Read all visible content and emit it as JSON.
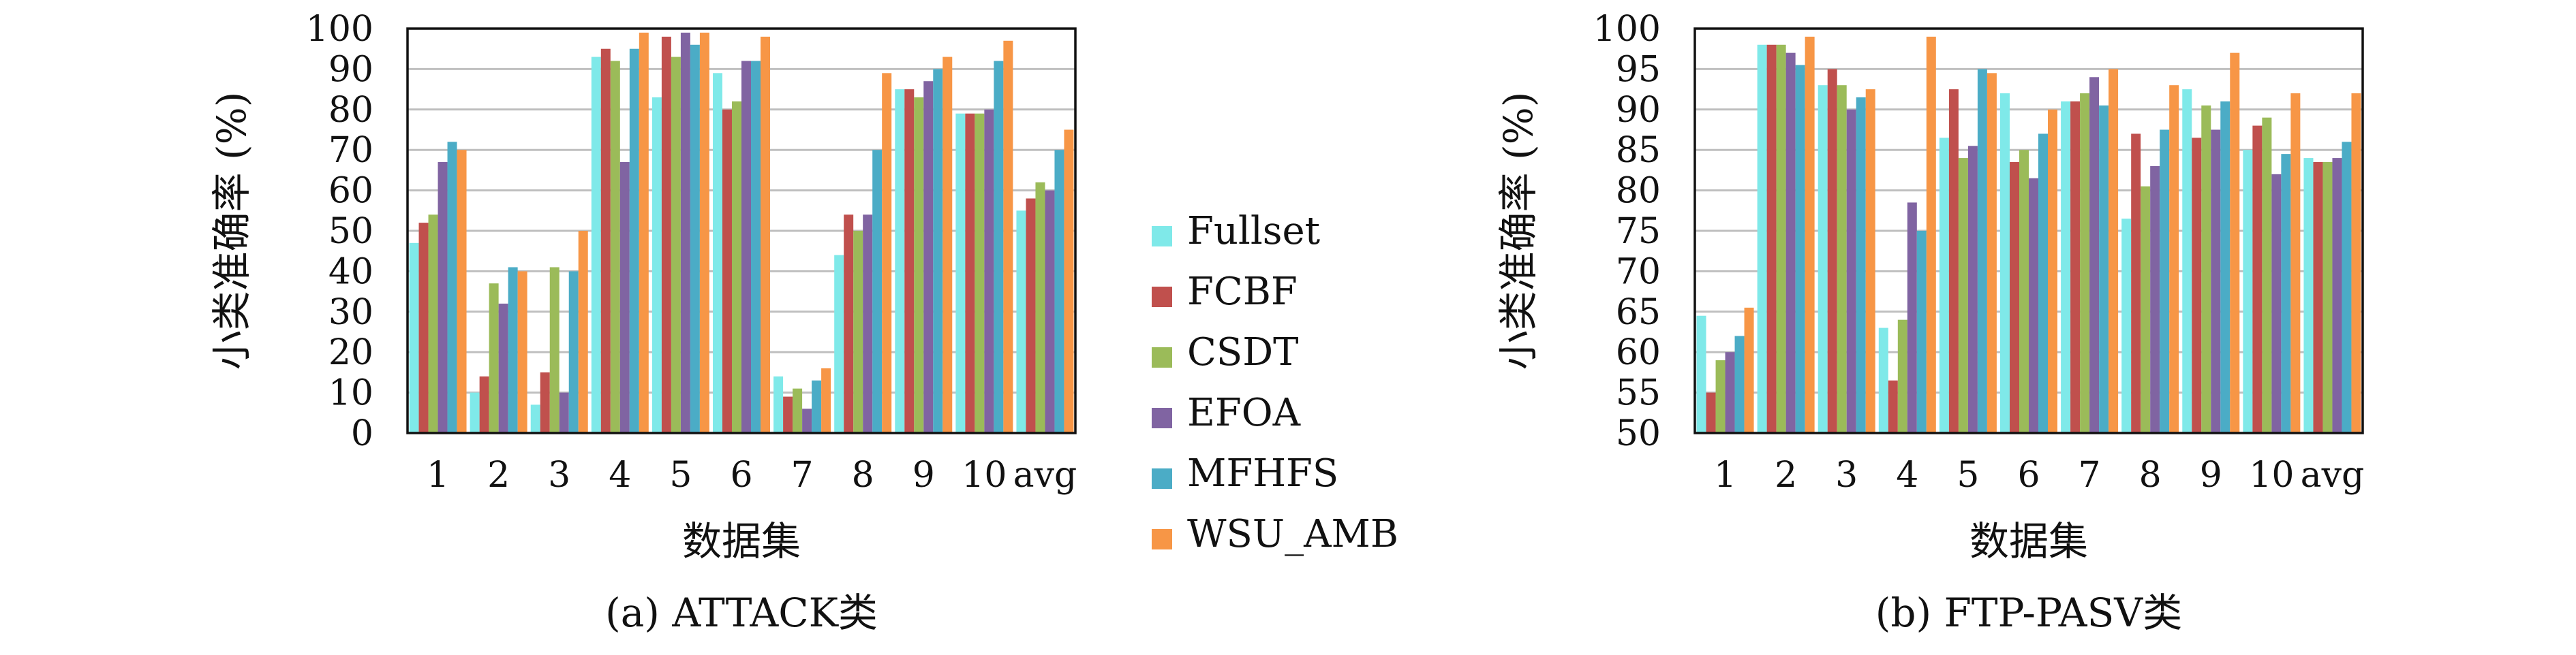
{
  "colors": {
    "Fullset": "#7fe9e9",
    "FCBF": "#c0504d",
    "CSDT": "#9bbb59",
    "EFOA": "#8064a2",
    "MFHFS": "#4bacc6",
    "WSU_AMB": "#f79646"
  },
  "legend": {
    "title": "",
    "items": [
      "Fullset",
      "FCBF",
      "CSDT",
      "EFOA",
      "MFHFS",
      "WSU_AMB"
    ]
  },
  "chart_data": [
    {
      "type": "bar",
      "title": "",
      "caption": "(a) ATTACK类",
      "xlabel": "数据集",
      "ylabel": "小类准确率 (%)",
      "ylim": [
        0,
        100
      ],
      "yticks": [
        "0",
        "10",
        "20",
        "30",
        "40",
        "50",
        "60",
        "70",
        "80",
        "90",
        "100"
      ],
      "grid": true,
      "categories": [
        "1",
        "2",
        "3",
        "4",
        "5",
        "6",
        "7",
        "8",
        "9",
        "10",
        "avg"
      ],
      "series": [
        {
          "name": "Fullset",
          "values": [
            47,
            10,
            7,
            93,
            83,
            89,
            14,
            44,
            85,
            79,
            55
          ]
        },
        {
          "name": "FCBF",
          "values": [
            52,
            14,
            15,
            95,
            98,
            80,
            9,
            54,
            85,
            79,
            58
          ]
        },
        {
          "name": "CSDT",
          "values": [
            54,
            37,
            41,
            92,
            93,
            82,
            11,
            50,
            83,
            79,
            62
          ]
        },
        {
          "name": "EFOA",
          "values": [
            67,
            32,
            10,
            67,
            99,
            92,
            6,
            54,
            87,
            80,
            60
          ]
        },
        {
          "name": "MFHFS",
          "values": [
            72,
            41,
            40,
            95,
            96,
            92,
            13,
            70,
            90,
            92,
            70
          ]
        },
        {
          "name": "WSU_AMB",
          "values": [
            70,
            40,
            50,
            99,
            99,
            98,
            16,
            89,
            93,
            97,
            75
          ]
        }
      ]
    },
    {
      "type": "bar",
      "title": "",
      "caption": "(b) FTP-PASV类",
      "xlabel": "数据集",
      "ylabel": "小类准确率 (%)",
      "ylim": [
        50,
        100
      ],
      "yticks": [
        "50",
        "55",
        "60",
        "65",
        "70",
        "75",
        "80",
        "85",
        "90",
        "95",
        "100"
      ],
      "grid": true,
      "categories": [
        "1",
        "2",
        "3",
        "4",
        "5",
        "6",
        "7",
        "8",
        "9",
        "10",
        "avg"
      ],
      "series": [
        {
          "name": "Fullset",
          "values": [
            64.5,
            98,
            93,
            63,
            86.5,
            92,
            91,
            76.5,
            92.5,
            85,
            84
          ]
        },
        {
          "name": "FCBF",
          "values": [
            55,
            98,
            95,
            56.5,
            92.5,
            83.5,
            91,
            87,
            86.5,
            88,
            83.5
          ]
        },
        {
          "name": "CSDT",
          "values": [
            59,
            98,
            93,
            64,
            84,
            85,
            92,
            80.5,
            90.5,
            89,
            83.5
          ]
        },
        {
          "name": "EFOA",
          "values": [
            60,
            97,
            90,
            78.5,
            85.5,
            81.5,
            94,
            83,
            87.5,
            82,
            84
          ]
        },
        {
          "name": "MFHFS",
          "values": [
            62,
            95.5,
            91.5,
            75,
            95,
            87,
            90.5,
            87.5,
            91,
            84.5,
            86
          ]
        },
        {
          "name": "WSU_AMB",
          "values": [
            65.5,
            99,
            92.5,
            99,
            94.5,
            90,
            95,
            93,
            97,
            92,
            92
          ]
        }
      ]
    }
  ]
}
